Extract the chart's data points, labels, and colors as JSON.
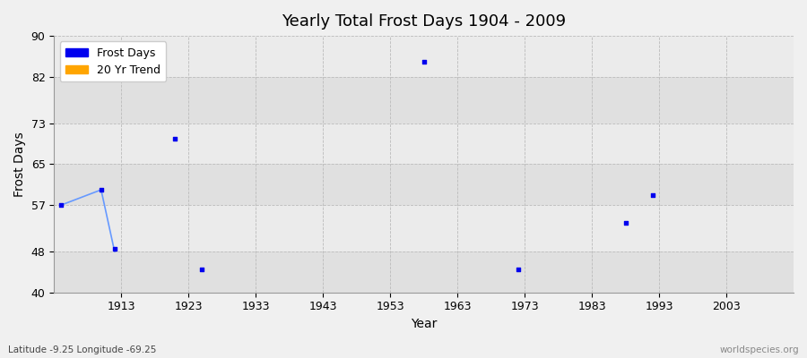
{
  "title": "Yearly Total Frost Days 1904 - 2009",
  "xlabel": "Year",
  "ylabel": "Frost Days",
  "xlim": [
    1903,
    2013
  ],
  "ylim": [
    40,
    90
  ],
  "yticks": [
    40,
    48,
    57,
    65,
    73,
    82,
    90
  ],
  "xticks": [
    1913,
    1923,
    1933,
    1943,
    1953,
    1963,
    1973,
    1983,
    1993,
    2003
  ],
  "background_color": "#f0f0f0",
  "plot_bg_light": "#ebebeb",
  "plot_bg_dark": "#e0e0e0",
  "frost_days_x": [
    1904,
    1910,
    1912,
    1921,
    1925,
    1958,
    1972,
    1988,
    1992
  ],
  "frost_days_y": [
    57,
    60,
    48.5,
    70,
    44.5,
    85,
    44.5,
    53.5,
    59
  ],
  "trend_line_x": [
    1904,
    1910,
    1912
  ],
  "trend_line_y": [
    57,
    60,
    48
  ],
  "point_color": "#0000ee",
  "trend_color": "#6699ff",
  "legend_frost_color": "#0000ee",
  "legend_trend_color": "#ffa500",
  "bottom_left_text": "Latitude -9.25 Longitude -69.25",
  "bottom_right_text": "worldspecies.org",
  "title_fontsize": 13,
  "axis_label_fontsize": 10,
  "tick_fontsize": 9,
  "legend_fontsize": 9
}
